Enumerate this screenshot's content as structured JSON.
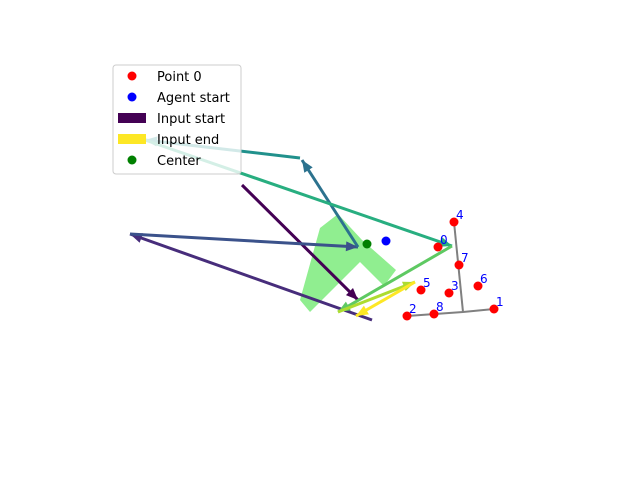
{
  "chart_data": {
    "type": "scatter",
    "title": "",
    "xlabel": "",
    "ylabel": "",
    "axes_visible": false,
    "xlim": [
      0,
      640
    ],
    "ylim": [
      480,
      0
    ],
    "colors": {
      "point": "#ff0000",
      "agent": "#0000ff",
      "center": "#008000",
      "shape": "#90ee90",
      "skeleton": "#808080",
      "point_label": "#0000ff",
      "colormap": "viridis"
    },
    "legend": {
      "placement": "upper-left",
      "entries": [
        {
          "label": "Point 0",
          "kind": "dot",
          "color": "#ff0000"
        },
        {
          "label": "Agent start",
          "kind": "dot",
          "color": "#0000ff"
        },
        {
          "label": "Input start",
          "kind": "patch",
          "color": "#440154"
        },
        {
          "label": "Input end",
          "kind": "patch",
          "color": "#fde725"
        },
        {
          "label": "Center",
          "kind": "dot",
          "color": "#008000"
        }
      ]
    },
    "shape_polygon": [
      [
        320,
        228
      ],
      [
        338,
        214
      ],
      [
        362,
        240
      ],
      [
        396,
        270
      ],
      [
        384,
        286
      ],
      [
        360,
        262
      ],
      [
        310,
        312
      ],
      [
        300,
        300
      ]
    ],
    "center": {
      "x": 367,
      "y": 244
    },
    "agent_start": {
      "x": 386,
      "y": 241
    },
    "points": [
      {
        "label": "0",
        "x": 438,
        "y": 247
      },
      {
        "label": "1",
        "x": 494,
        "y": 309
      },
      {
        "label": "2",
        "x": 407,
        "y": 316
      },
      {
        "label": "3",
        "x": 449,
        "y": 293
      },
      {
        "label": "4",
        "x": 454,
        "y": 222
      },
      {
        "label": "5",
        "x": 421,
        "y": 290
      },
      {
        "label": "6",
        "x": 478,
        "y": 286
      },
      {
        "label": "7",
        "x": 459,
        "y": 265
      },
      {
        "label": "8",
        "x": 434,
        "y": 314
      }
    ],
    "skeleton_lines": [
      [
        [
          494,
          309
        ],
        [
          463,
          312
        ],
        [
          407,
          316
        ]
      ],
      [
        [
          463,
          312
        ],
        [
          454,
          222
        ]
      ]
    ],
    "input_segments": [
      {
        "color": "#440154",
        "from": [
          242,
          185
        ],
        "to": [
          358,
          300
        ]
      },
      {
        "color": "#472d7b",
        "from": [
          372,
          320
        ],
        "to": [
          130,
          234
        ]
      },
      {
        "color": "#3b528b",
        "from": [
          130,
          234
        ],
        "to": [
          358,
          247
        ]
      },
      {
        "color": "#2c728e",
        "from": [
          358,
          247
        ],
        "to": [
          302,
          160
        ]
      },
      {
        "color": "#21918c",
        "from": [
          300,
          158
        ],
        "to": [
          145,
          140
        ]
      },
      {
        "color": "#28ae80",
        "from": [
          145,
          140
        ],
        "to": [
          452,
          246
        ]
      },
      {
        "color": "#5ec962",
        "from": [
          452,
          246
        ],
        "to": [
          338,
          312
        ]
      },
      {
        "color": "#addc30",
        "from": [
          338,
          312
        ],
        "to": [
          415,
          282
        ]
      },
      {
        "color": "#fde725",
        "from": [
          415,
          282
        ],
        "to": [
          356,
          316
        ]
      }
    ]
  }
}
